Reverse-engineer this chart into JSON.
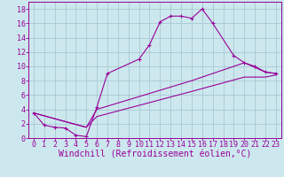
{
  "xlabel": "Windchill (Refroidissement éolien,°C)",
  "bg_color": "#cce8ee",
  "line_color": "#990099",
  "grid_color": "#aac8d4",
  "xlim": [
    -0.5,
    23.5
  ],
  "ylim": [
    0,
    19
  ],
  "xticks": [
    0,
    1,
    2,
    3,
    4,
    5,
    6,
    7,
    8,
    9,
    10,
    11,
    12,
    13,
    14,
    15,
    16,
    17,
    18,
    19,
    20,
    21,
    22,
    23
  ],
  "yticks": [
    0,
    2,
    4,
    6,
    8,
    10,
    12,
    14,
    16,
    18
  ],
  "series1_x": [
    0,
    1,
    2,
    3,
    4,
    5,
    6,
    7,
    10,
    11,
    12,
    13,
    14,
    15,
    16,
    17,
    19,
    20,
    21,
    22,
    23
  ],
  "series1_y": [
    3.5,
    1.8,
    1.5,
    1.4,
    0.4,
    0.2,
    4.3,
    9.0,
    11.0,
    13.0,
    16.2,
    17.0,
    17.0,
    16.7,
    18.0,
    16.0,
    11.5,
    10.5,
    10.0,
    9.2,
    9.0
  ],
  "series2_x": [
    0,
    5,
    6,
    15,
    20,
    22,
    23
  ],
  "series2_y": [
    3.5,
    1.5,
    4.0,
    8.0,
    10.5,
    9.2,
    9.0
  ],
  "series3_x": [
    0,
    5,
    6,
    15,
    20,
    22,
    23
  ],
  "series3_y": [
    3.5,
    1.5,
    3.0,
    6.5,
    8.5,
    8.5,
    8.8
  ],
  "fontfamily": "monospace",
  "fontsize_xlabel": 7,
  "fontsize_ticks": 6
}
